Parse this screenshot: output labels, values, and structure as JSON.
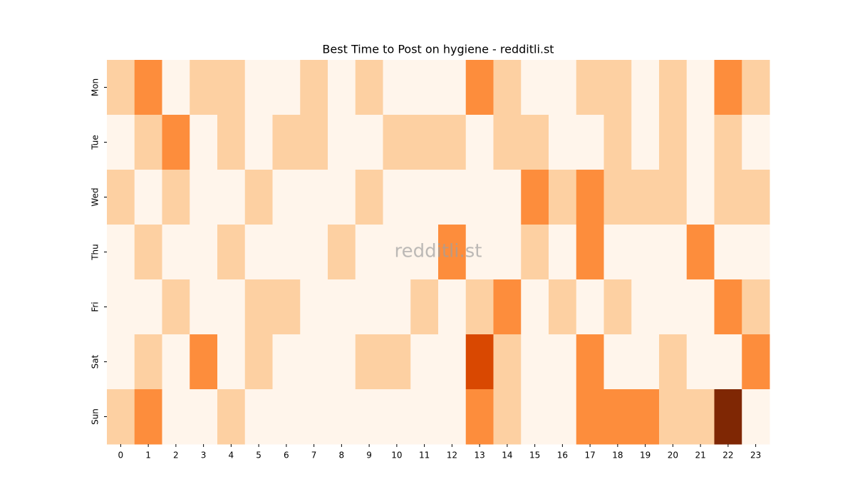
{
  "chart_data": {
    "type": "heatmap",
    "title": "Best Time to Post on hygiene - redditli.st",
    "watermark": "redditli.st",
    "x": [
      "0",
      "1",
      "2",
      "3",
      "4",
      "5",
      "6",
      "7",
      "8",
      "9",
      "10",
      "11",
      "12",
      "13",
      "14",
      "15",
      "16",
      "17",
      "18",
      "19",
      "20",
      "21",
      "22",
      "23"
    ],
    "y": [
      "Mon",
      "Tue",
      "Wed",
      "Thu",
      "Fri",
      "Sat",
      "Sun"
    ],
    "values": [
      [
        1,
        2,
        0,
        1,
        1,
        0,
        0,
        1,
        0,
        1,
        0,
        0,
        0,
        2,
        1,
        0,
        0,
        1,
        1,
        0,
        1,
        0,
        2,
        1
      ],
      [
        0,
        1,
        2,
        0,
        1,
        0,
        1,
        1,
        0,
        0,
        1,
        1,
        1,
        0,
        1,
        1,
        0,
        0,
        1,
        0,
        1,
        0,
        1,
        0
      ],
      [
        1,
        0,
        1,
        0,
        0,
        1,
        0,
        0,
        0,
        1,
        0,
        0,
        0,
        0,
        0,
        2,
        1,
        2,
        1,
        1,
        1,
        0,
        1,
        1
      ],
      [
        0,
        1,
        0,
        0,
        1,
        0,
        0,
        0,
        1,
        0,
        0,
        0,
        2,
        0,
        0,
        1,
        0,
        2,
        0,
        0,
        0,
        2,
        0,
        0
      ],
      [
        0,
        0,
        1,
        0,
        0,
        1,
        1,
        0,
        0,
        0,
        0,
        1,
        0,
        1,
        2,
        0,
        1,
        0,
        1,
        0,
        0,
        0,
        2,
        1
      ],
      [
        0,
        1,
        0,
        2,
        0,
        1,
        0,
        0,
        0,
        1,
        1,
        0,
        0,
        3,
        1,
        0,
        0,
        2,
        0,
        0,
        1,
        0,
        0,
        2
      ],
      [
        1,
        2,
        0,
        0,
        1,
        0,
        0,
        0,
        0,
        0,
        0,
        0,
        0,
        2,
        1,
        0,
        0,
        2,
        2,
        2,
        1,
        1,
        4,
        0
      ]
    ],
    "colormap": [
      "#fff5eb",
      "#fdd0a2",
      "#fd8d3c",
      "#d94801",
      "#7f2704"
    ],
    "vmin": 0,
    "vmax": 4
  }
}
